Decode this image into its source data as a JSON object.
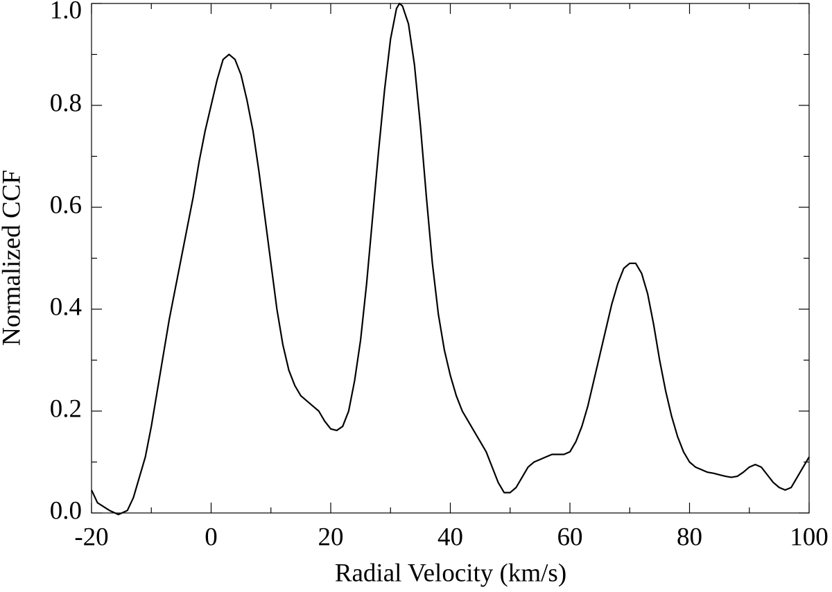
{
  "chart_data": {
    "type": "line",
    "xlabel": "Radial Velocity (km/s)",
    "ylabel": "Normalized CCF",
    "x": [
      -20,
      -19,
      -17,
      -15.5,
      -14,
      -13,
      -12,
      -11,
      -10,
      -9,
      -8,
      -7,
      -6,
      -5,
      -4,
      -3,
      -2,
      -1,
      0,
      1,
      2,
      3,
      4,
      5,
      6,
      7,
      8,
      9,
      10,
      11,
      12,
      13,
      14,
      15,
      16,
      17,
      18,
      19,
      20,
      21,
      22,
      23,
      24,
      25,
      26,
      27,
      28,
      29,
      30,
      31,
      31.5,
      32,
      33,
      34,
      35,
      36,
      37,
      38,
      39,
      40,
      41,
      42,
      43,
      44,
      45,
      46,
      47,
      48,
      49,
      50,
      51,
      52,
      53,
      54,
      55,
      56,
      57,
      58,
      59,
      60,
      61,
      62,
      63,
      64,
      65,
      66,
      67,
      68,
      69,
      70,
      71,
      72,
      73,
      74,
      75,
      76,
      77,
      78,
      79,
      80,
      81,
      82,
      83,
      84,
      85,
      86,
      87,
      88,
      89,
      90,
      91,
      92,
      93,
      94,
      95,
      96,
      97,
      98,
      99,
      100
    ],
    "series": [
      {
        "name": "CCF",
        "color": "#000000",
        "values": [
          0.045,
          0.02,
          0.005,
          -0.003,
          0.005,
          0.03,
          0.07,
          0.11,
          0.17,
          0.24,
          0.31,
          0.38,
          0.44,
          0.5,
          0.56,
          0.62,
          0.69,
          0.75,
          0.8,
          0.85,
          0.89,
          0.9,
          0.89,
          0.86,
          0.81,
          0.75,
          0.67,
          0.58,
          0.49,
          0.4,
          0.33,
          0.28,
          0.25,
          0.23,
          0.22,
          0.21,
          0.2,
          0.18,
          0.165,
          0.162,
          0.17,
          0.2,
          0.26,
          0.34,
          0.45,
          0.58,
          0.71,
          0.83,
          0.93,
          0.99,
          1.0,
          0.995,
          0.96,
          0.88,
          0.76,
          0.62,
          0.49,
          0.39,
          0.32,
          0.27,
          0.23,
          0.2,
          0.18,
          0.16,
          0.14,
          0.12,
          0.09,
          0.06,
          0.04,
          0.04,
          0.05,
          0.07,
          0.09,
          0.1,
          0.105,
          0.11,
          0.115,
          0.115,
          0.115,
          0.12,
          0.14,
          0.17,
          0.21,
          0.26,
          0.31,
          0.36,
          0.41,
          0.45,
          0.48,
          0.49,
          0.49,
          0.47,
          0.43,
          0.37,
          0.3,
          0.24,
          0.19,
          0.15,
          0.12,
          0.1,
          0.09,
          0.085,
          0.08,
          0.078,
          0.075,
          0.072,
          0.07,
          0.072,
          0.08,
          0.09,
          0.095,
          0.09,
          0.075,
          0.06,
          0.05,
          0.045,
          0.05,
          0.07,
          0.09,
          0.11
        ]
      }
    ],
    "xlim": [
      -20,
      100
    ],
    "xticks": [
      -20,
      0,
      20,
      40,
      60,
      80,
      100
    ],
    "ylim": [
      0,
      1
    ],
    "yticks": [
      {
        "value": 0,
        "label": "0.0"
      },
      {
        "value": 0.2,
        "label": "0.2"
      },
      {
        "value": 0.4,
        "label": "0.4"
      },
      {
        "value": 0.6,
        "label": "0.6"
      },
      {
        "value": 0.8,
        "label": "0.8"
      },
      {
        "value": 1,
        "label": "1.0"
      }
    ],
    "grid": false
  }
}
